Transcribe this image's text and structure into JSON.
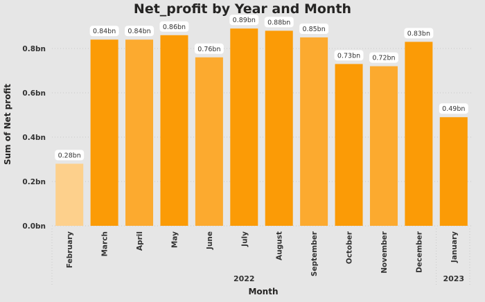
{
  "chart_data": {
    "type": "bar",
    "title": "Net_profit by Year and Month",
    "xlabel": "Month",
    "ylabel": "Sum of Net profit",
    "ylim": [
      0,
      0.9
    ],
    "yticks": [
      0.0,
      0.2,
      0.4,
      0.6,
      0.8
    ],
    "ytick_labels": [
      "0.0bn",
      "0.2bn",
      "0.4bn",
      "0.6bn",
      "0.8bn"
    ],
    "categories": [
      "February",
      "March",
      "April",
      "May",
      "June",
      "July",
      "August",
      "September",
      "October",
      "November",
      "December",
      "January"
    ],
    "years": [
      {
        "label": "2022",
        "count": 11
      },
      {
        "label": "2023",
        "count": 1
      }
    ],
    "values": [
      0.28,
      0.84,
      0.84,
      0.86,
      0.76,
      0.89,
      0.88,
      0.85,
      0.73,
      0.72,
      0.83,
      0.49
    ],
    "data_labels": [
      "0.28bn",
      "0.84bn",
      "0.84bn",
      "0.86bn",
      "0.76bn",
      "0.89bn",
      "0.88bn",
      "0.85bn",
      "0.73bn",
      "0.72bn",
      "0.83bn",
      "0.49bn"
    ],
    "bar_colors": [
      "#fdd08c",
      "#fb9b06",
      "#fcaa2f",
      "#fb9b06",
      "#fcaa2f",
      "#fb9b06",
      "#fb9b06",
      "#fcaa2f",
      "#fb9b06",
      "#fcaa2f",
      "#fb9b06",
      "#fb9b06"
    ],
    "grid": true,
    "legend": "none"
  }
}
